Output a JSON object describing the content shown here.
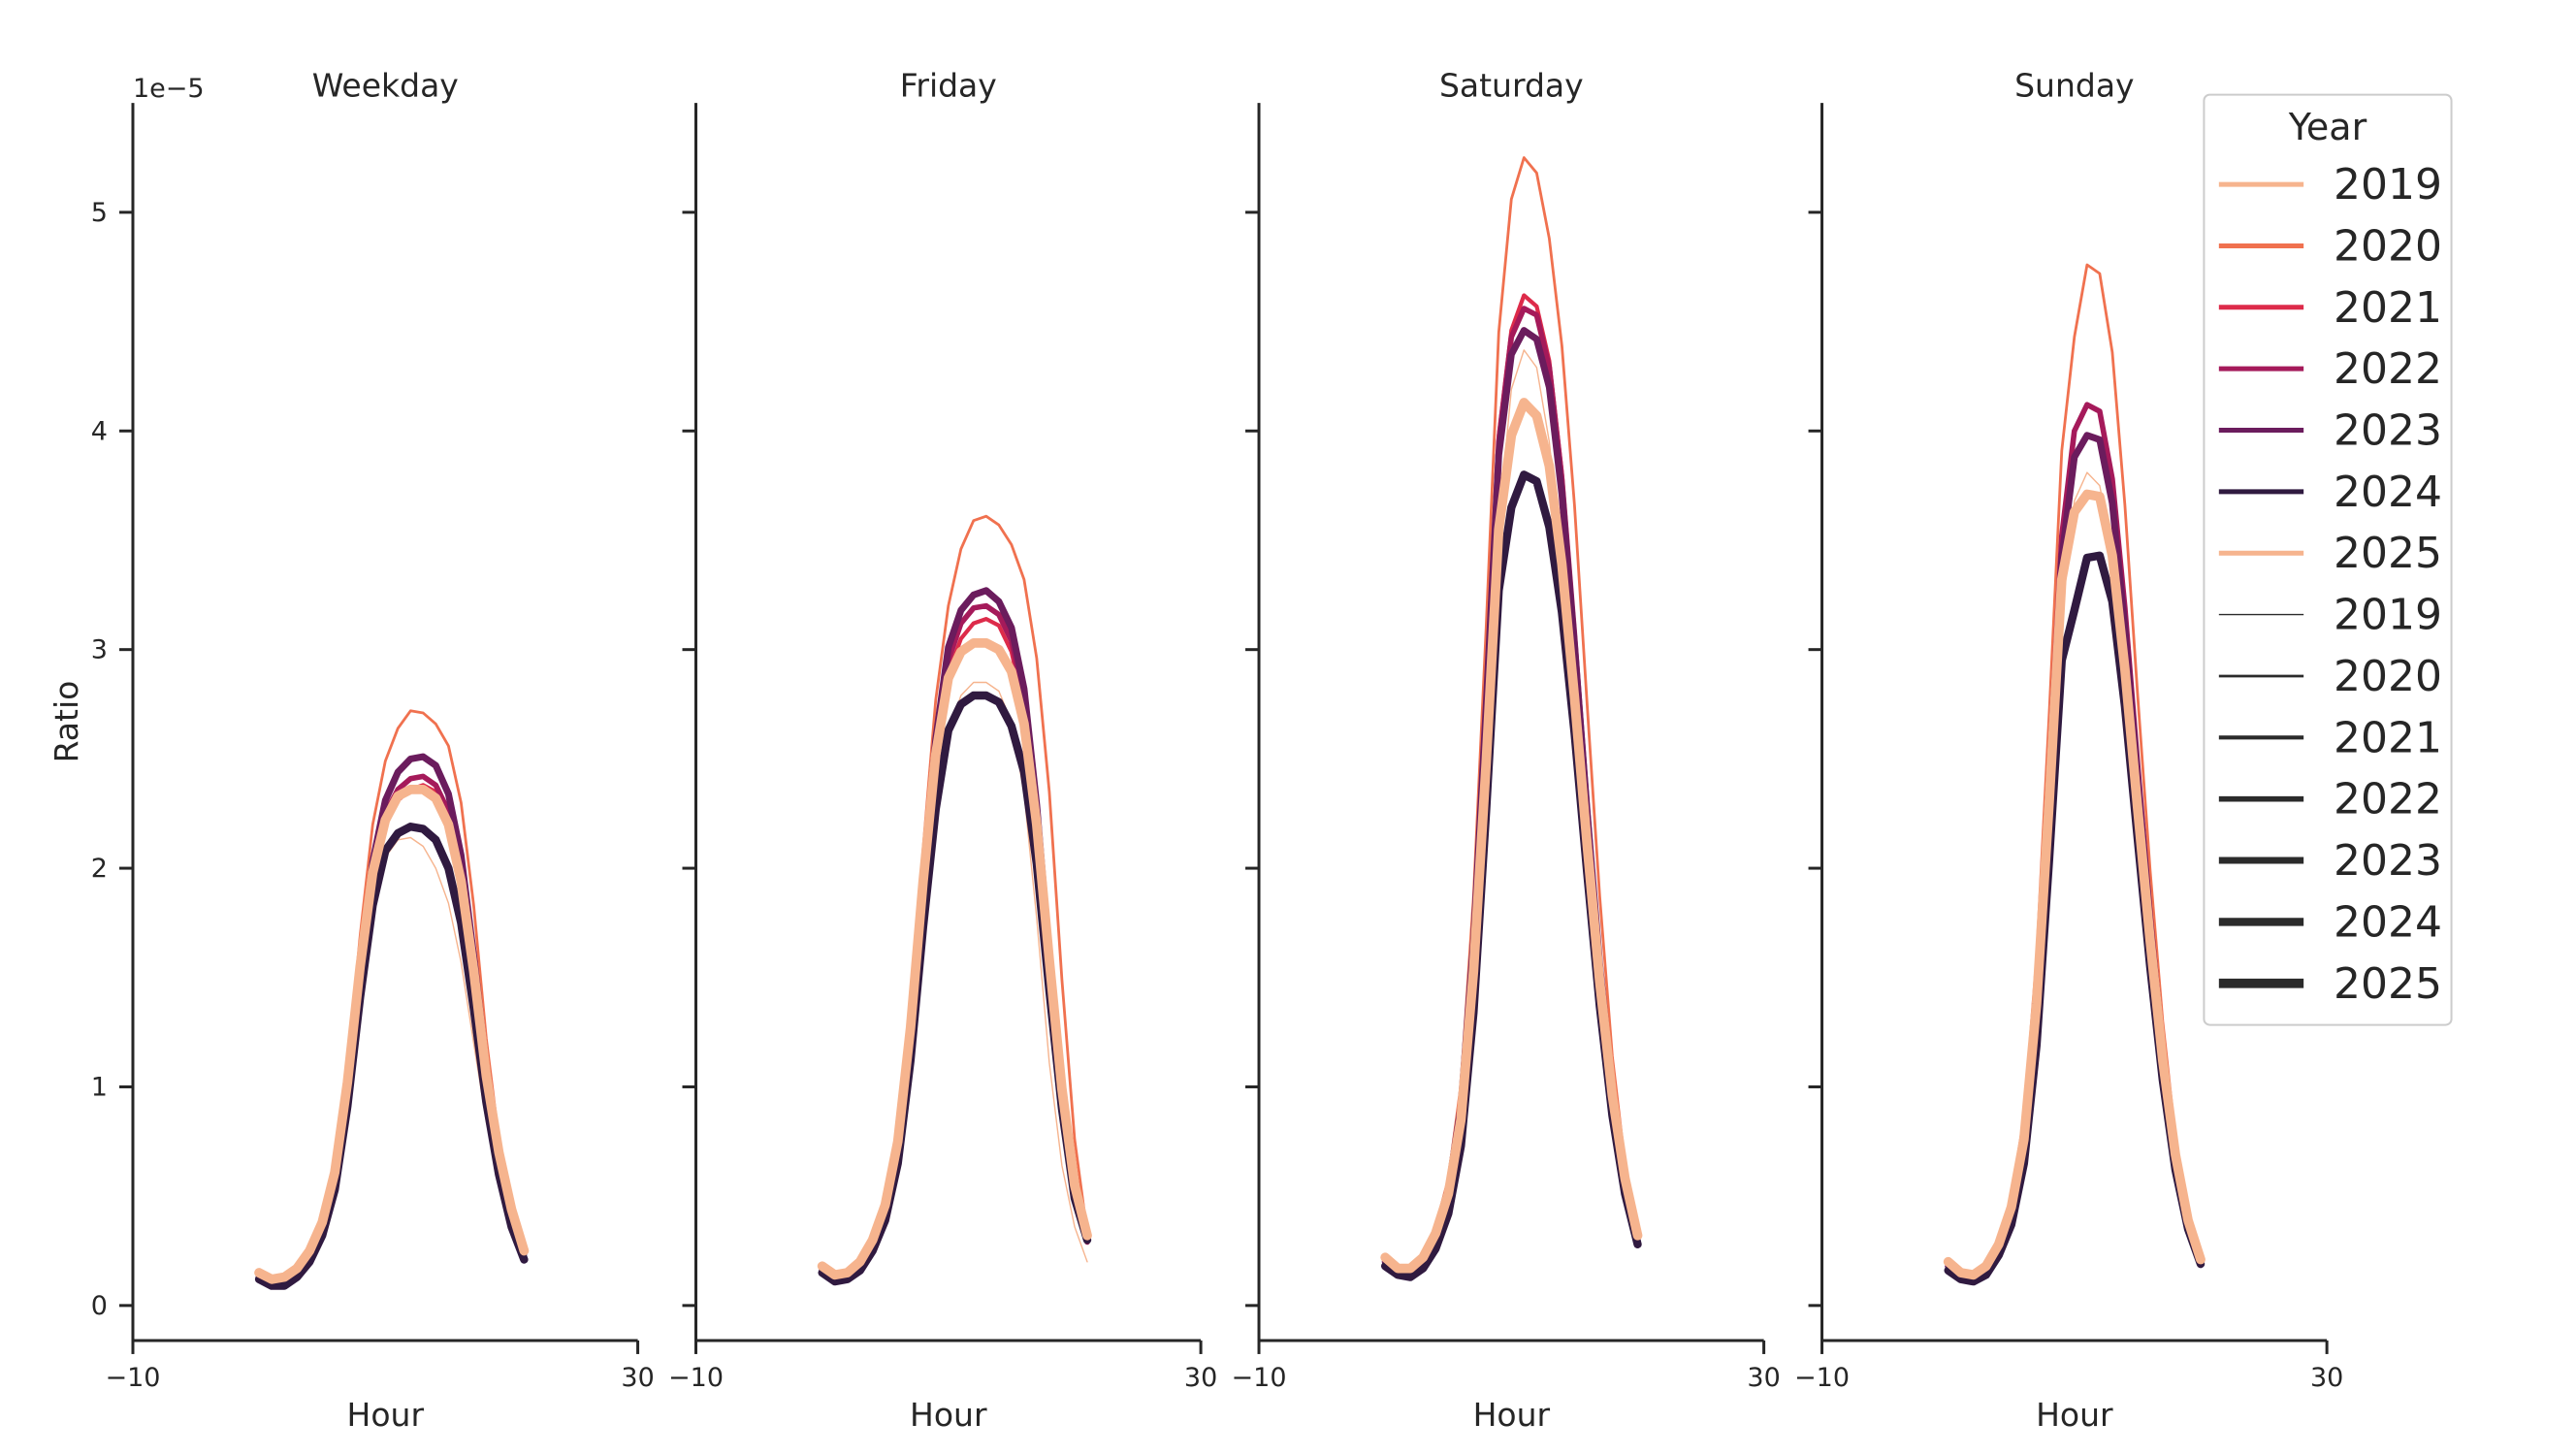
{
  "chart_data": {
    "type": "line",
    "ylabel": "Ratio",
    "y_offset_label": "1e−5",
    "y_scale_exponent": -5,
    "ylim": [
      -0.16,
      5.5
    ],
    "yticks": [
      0,
      1,
      2,
      3,
      4,
      5
    ],
    "xlim": [
      -10,
      30
    ],
    "xticks": [
      -10,
      30
    ],
    "x": [
      0,
      1,
      2,
      3,
      4,
      5,
      6,
      7,
      8,
      9,
      10,
      11,
      12,
      13,
      14,
      15,
      16,
      17,
      18,
      19,
      20,
      21,
      22,
      23
    ],
    "legend": {
      "title": "Year",
      "position": "upper right",
      "hue_entries": [
        "2019",
        "2020",
        "2021",
        "2022",
        "2023",
        "2024",
        "2025"
      ],
      "size_entries": [
        "2019",
        "2020",
        "2021",
        "2022",
        "2023",
        "2024",
        "2025"
      ]
    },
    "series_style": [
      {
        "year": "2019",
        "color": "#f6b48e",
        "width": 1
      },
      {
        "year": "2020",
        "color": "#f0714f",
        "width": 2
      },
      {
        "year": "2021",
        "color": "#dd2b4a",
        "width": 3
      },
      {
        "year": "2022",
        "color": "#a51a5a",
        "width": 4
      },
      {
        "year": "2023",
        "color": "#6b1c5d",
        "width": 5
      },
      {
        "year": "2024",
        "color": "#301a40",
        "width": 6
      },
      {
        "year": "2025",
        "color": "#f6b48e",
        "width": 7
      }
    ],
    "panels": [
      {
        "title": "Weekday",
        "series": [
          {
            "name": "2019",
            "values": [
              0.12,
              0.09,
              0.1,
              0.14,
              0.22,
              0.34,
              0.55,
              0.95,
              1.46,
              1.84,
              2.05,
              2.13,
              2.14,
              2.1,
              2.0,
              1.84,
              1.57,
              1.2,
              0.84,
              0.57,
              0.37,
              0.23
            ]
          },
          {
            "name": "2020",
            "values": [
              0.14,
              0.11,
              0.12,
              0.16,
              0.25,
              0.39,
              0.64,
              1.09,
              1.69,
              2.2,
              2.49,
              2.64,
              2.72,
              2.71,
              2.66,
              2.56,
              2.3,
              1.83,
              1.22,
              0.76,
              0.45,
              0.27
            ]
          },
          {
            "name": "2021",
            "values": [
              0.13,
              0.1,
              0.11,
              0.15,
              0.23,
              0.36,
              0.58,
              1.0,
              1.53,
              1.98,
              2.22,
              2.31,
              2.36,
              2.38,
              2.35,
              2.24,
              1.98,
              1.55,
              1.06,
              0.68,
              0.42,
              0.25
            ]
          },
          {
            "name": "2022",
            "values": [
              0.13,
              0.1,
              0.11,
              0.15,
              0.23,
              0.36,
              0.59,
              1.0,
              1.54,
              1.99,
              2.25,
              2.36,
              2.41,
              2.42,
              2.38,
              2.26,
              1.99,
              1.55,
              1.06,
              0.68,
              0.42,
              0.24
            ]
          },
          {
            "name": "2023",
            "values": [
              0.13,
              0.1,
              0.11,
              0.15,
              0.23,
              0.36,
              0.59,
              1.01,
              1.56,
              2.03,
              2.31,
              2.44,
              2.5,
              2.51,
              2.47,
              2.34,
              2.06,
              1.6,
              1.09,
              0.69,
              0.42,
              0.24
            ]
          },
          {
            "name": "2024",
            "values": [
              0.12,
              0.09,
              0.09,
              0.13,
              0.2,
              0.32,
              0.53,
              0.91,
              1.41,
              1.83,
              2.08,
              2.16,
              2.19,
              2.18,
              2.13,
              2.0,
              1.75,
              1.36,
              0.93,
              0.6,
              0.36,
              0.21
            ]
          },
          {
            "name": "2025",
            "values": [
              0.15,
              0.12,
              0.13,
              0.17,
              0.25,
              0.38,
              0.61,
              1.02,
              1.55,
              1.98,
              2.22,
              2.33,
              2.36,
              2.36,
              2.32,
              2.2,
              1.94,
              1.53,
              1.05,
              0.7,
              0.44,
              0.25
            ]
          }
        ]
      },
      {
        "title": "Friday",
        "series": [
          {
            "name": "2019",
            "values": [
              0.15,
              0.11,
              0.12,
              0.16,
              0.25,
              0.39,
              0.64,
              1.12,
              1.75,
              2.28,
              2.62,
              2.79,
              2.85,
              2.85,
              2.81,
              2.67,
              2.34,
              1.77,
              1.11,
              0.64,
              0.36,
              0.2
            ]
          },
          {
            "name": "2020",
            "values": [
              0.17,
              0.13,
              0.14,
              0.19,
              0.29,
              0.46,
              0.76,
              1.33,
              2.09,
              2.77,
              3.2,
              3.46,
              3.59,
              3.61,
              3.57,
              3.48,
              3.32,
              2.96,
              2.35,
              1.49,
              0.76,
              0.33
            ]
          },
          {
            "name": "2021",
            "values": [
              0.16,
              0.12,
              0.13,
              0.18,
              0.28,
              0.43,
              0.71,
              1.22,
              1.9,
              2.5,
              2.89,
              3.05,
              3.12,
              3.14,
              3.11,
              2.99,
              2.73,
              2.23,
              1.57,
              0.96,
              0.51,
              0.29
            ]
          },
          {
            "name": "2022",
            "values": [
              0.16,
              0.12,
              0.13,
              0.18,
              0.28,
              0.44,
              0.72,
              1.24,
              1.93,
              2.54,
              2.95,
              3.12,
              3.19,
              3.2,
              3.16,
              3.04,
              2.77,
              2.26,
              1.58,
              0.96,
              0.51,
              0.29
            ]
          },
          {
            "name": "2023",
            "values": [
              0.16,
              0.12,
              0.13,
              0.18,
              0.28,
              0.44,
              0.73,
              1.26,
              1.96,
              2.59,
              3.01,
              3.18,
              3.25,
              3.27,
              3.22,
              3.1,
              2.82,
              2.29,
              1.6,
              0.97,
              0.52,
              0.3
            ]
          },
          {
            "name": "2024",
            "values": [
              0.15,
              0.11,
              0.12,
              0.16,
              0.25,
              0.39,
              0.65,
              1.12,
              1.73,
              2.27,
              2.63,
              2.75,
              2.79,
              2.79,
              2.76,
              2.65,
              2.44,
              2.02,
              1.44,
              0.9,
              0.49,
              0.3
            ]
          },
          {
            "name": "2025",
            "values": [
              0.18,
              0.14,
              0.15,
              0.2,
              0.3,
              0.46,
              0.75,
              1.27,
              1.94,
              2.52,
              2.87,
              2.99,
              3.03,
              3.03,
              3.0,
              2.9,
              2.66,
              2.2,
              1.58,
              0.99,
              0.55,
              0.32
            ]
          }
        ]
      },
      {
        "title": "Saturday",
        "series": [
          {
            "name": "2019",
            "values": [
              0.19,
              0.15,
              0.15,
              0.2,
              0.31,
              0.5,
              0.85,
              1.55,
              2.55,
              3.58,
              4.19,
              4.37,
              4.29,
              3.95,
              3.4,
              2.77,
              2.09,
              1.45,
              0.93,
              0.56,
              0.3
            ]
          },
          {
            "name": "2020",
            "values": [
              0.21,
              0.16,
              0.17,
              0.23,
              0.36,
              0.58,
              1.01,
              1.87,
              3.1,
              4.45,
              5.06,
              5.25,
              5.18,
              4.88,
              4.39,
              3.66,
              2.75,
              1.87,
              1.14,
              0.65,
              0.33
            ]
          },
          {
            "name": "2021",
            "values": [
              0.2,
              0.15,
              0.16,
              0.22,
              0.34,
              0.54,
              0.93,
              1.7,
              2.8,
              3.98,
              4.46,
              4.62,
              4.57,
              4.32,
              3.81,
              3.09,
              2.31,
              1.59,
              1.0,
              0.59,
              0.31
            ]
          },
          {
            "name": "2022",
            "values": [
              0.2,
              0.15,
              0.16,
              0.22,
              0.34,
              0.54,
              0.92,
              1.68,
              2.77,
              3.95,
              4.43,
              4.56,
              4.53,
              4.29,
              3.78,
              3.07,
              2.29,
              1.57,
              0.99,
              0.58,
              0.31
            ]
          },
          {
            "name": "2023",
            "values": [
              0.2,
              0.15,
              0.16,
              0.22,
              0.34,
              0.53,
              0.91,
              1.66,
              2.74,
              3.89,
              4.35,
              4.46,
              4.42,
              4.2,
              3.71,
              3.02,
              2.26,
              1.56,
              0.98,
              0.58,
              0.31
            ]
          },
          {
            "name": "2024",
            "values": [
              0.18,
              0.14,
              0.13,
              0.17,
              0.26,
              0.42,
              0.73,
              1.34,
              2.26,
              3.27,
              3.65,
              3.8,
              3.77,
              3.56,
              3.17,
              2.62,
              1.98,
              1.37,
              0.87,
              0.51,
              0.28
            ]
          },
          {
            "name": "2025",
            "values": [
              0.22,
              0.17,
              0.17,
              0.22,
              0.33,
              0.51,
              0.85,
              1.53,
              2.48,
              3.55,
              3.98,
              4.13,
              4.07,
              3.84,
              3.39,
              2.78,
              2.11,
              1.48,
              0.96,
              0.58,
              0.32
            ]
          }
        ]
      },
      {
        "title": "Sunday",
        "series": [
          {
            "name": "2019",
            "values": [
              0.17,
              0.13,
              0.13,
              0.17,
              0.27,
              0.44,
              0.74,
              1.33,
              2.21,
              3.15,
              3.68,
              3.81,
              3.75,
              3.45,
              2.93,
              2.3,
              1.68,
              1.12,
              0.68,
              0.39,
              0.2
            ]
          },
          {
            "name": "2020",
            "values": [
              0.19,
              0.14,
              0.14,
              0.19,
              0.31,
              0.5,
              0.86,
              1.59,
              2.7,
              3.91,
              4.43,
              4.76,
              4.72,
              4.36,
              3.66,
              2.8,
              1.99,
              1.3,
              0.77,
              0.42,
              0.21
            ]
          },
          {
            "name": "2021",
            "values": [
              0.18,
              0.13,
              0.14,
              0.18,
              0.29,
              0.47,
              0.8,
              1.46,
              2.45,
              3.52,
              4.0,
              4.12,
              4.09,
              3.78,
              3.19,
              2.48,
              1.79,
              1.18,
              0.71,
              0.4,
              0.2
            ]
          },
          {
            "name": "2022",
            "values": [
              0.18,
              0.13,
              0.14,
              0.18,
              0.29,
              0.47,
              0.8,
              1.46,
              2.45,
              3.52,
              4.0,
              4.12,
              4.09,
              3.78,
              3.19,
              2.48,
              1.79,
              1.18,
              0.71,
              0.4,
              0.2
            ]
          },
          {
            "name": "2023",
            "values": [
              0.18,
              0.13,
              0.14,
              0.18,
              0.29,
              0.46,
              0.78,
              1.43,
              2.39,
              3.42,
              3.88,
              3.98,
              3.96,
              3.67,
              3.1,
              2.42,
              1.75,
              1.16,
              0.7,
              0.39,
              0.2
            ]
          },
          {
            "name": "2024",
            "values": [
              0.16,
              0.12,
              0.11,
              0.14,
              0.23,
              0.37,
              0.65,
              1.19,
              2.04,
              2.95,
              3.18,
              3.42,
              3.43,
              3.22,
              2.74,
              2.14,
              1.55,
              1.03,
              0.62,
              0.35,
              0.19
            ]
          },
          {
            "name": "2025",
            "values": [
              0.2,
              0.15,
              0.14,
              0.18,
              0.28,
              0.45,
              0.76,
              1.38,
              2.3,
              3.32,
              3.63,
              3.71,
              3.7,
              3.43,
              2.91,
              2.28,
              1.67,
              1.12,
              0.69,
              0.39,
              0.21
            ]
          }
        ]
      }
    ]
  }
}
